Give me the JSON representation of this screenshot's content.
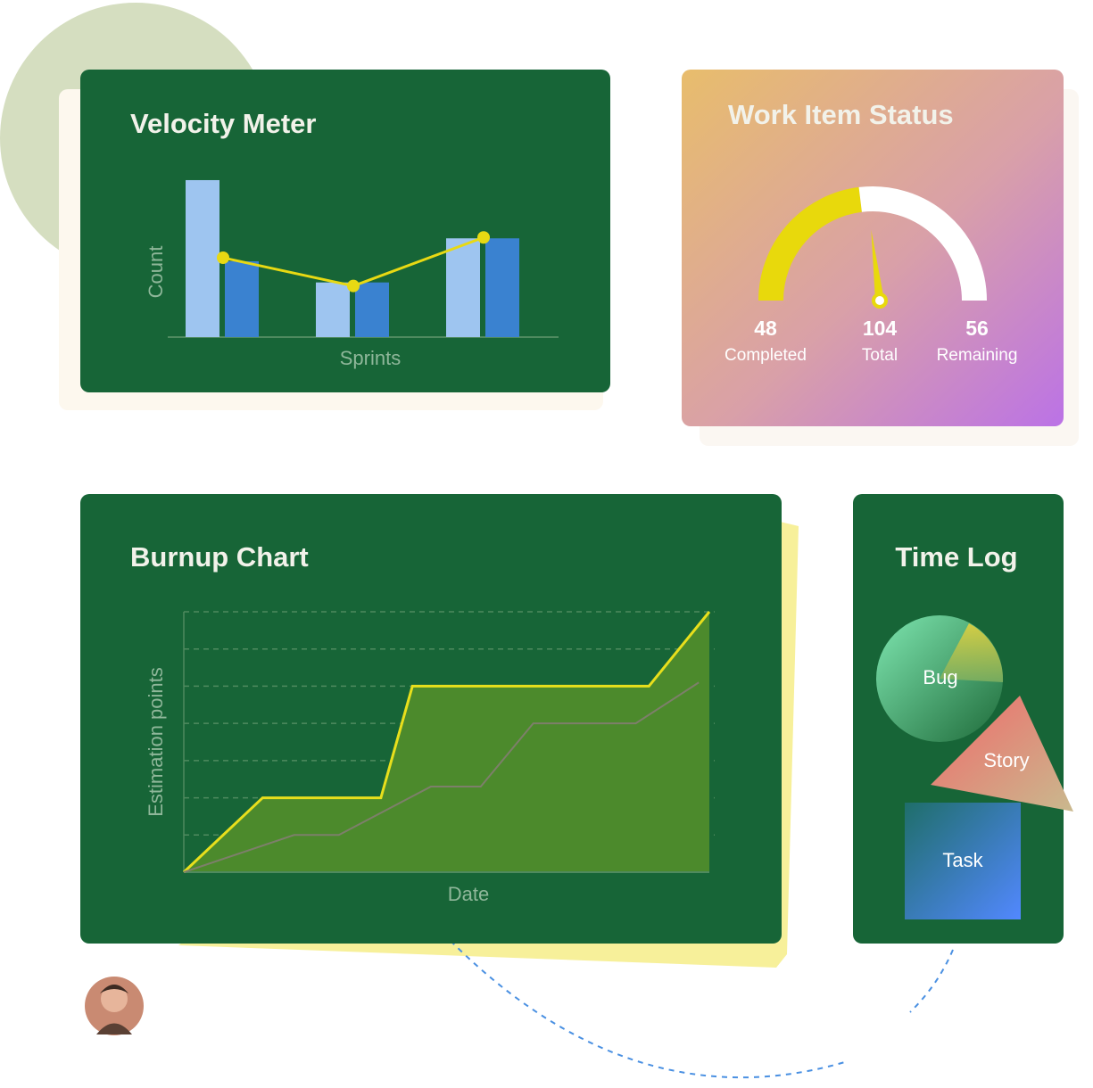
{
  "chart_data": [
    {
      "type": "bar",
      "title": "Velocity Meter",
      "x_label": "Sprints",
      "y_label": "Count",
      "categories": [
        null,
        null,
        null
      ],
      "ylim": [
        0,
        180
      ],
      "series": [
        {
          "color": "#9ec5f0",
          "values": [
            178,
            62,
            112
          ]
        },
        {
          "color": "#3a82d0",
          "values": [
            86,
            62,
            112
          ]
        }
      ],
      "line": {
        "color": "#e8d913",
        "values": [
          90,
          58,
          113
        ]
      }
    },
    {
      "type": "gauge",
      "title": "Work Item Status",
      "categories": [
        "Completed",
        "Total",
        "Remaining"
      ],
      "values": [
        48,
        104,
        56
      ],
      "colors": [
        "#e8d90c",
        "#ffffff"
      ]
    },
    {
      "type": "line",
      "title": "Burnup Chart",
      "x_label": "Date",
      "y_label": "Estimation points",
      "xlim": [
        0,
        20
      ],
      "ylim": [
        0,
        7
      ],
      "yticks": [
        1,
        2,
        3,
        4,
        5,
        6,
        7
      ],
      "grid": true,
      "series": [
        {
          "color": "#e8df1c",
          "area": "#4c8a2c",
          "x": [
            0,
            3,
            7.5,
            8.7,
            17.7,
            20
          ],
          "values": [
            0,
            2,
            2,
            5,
            5,
            7
          ]
        },
        {
          "color": "#7d7f6a",
          "x": [
            0,
            4.2,
            5.9,
            9.4,
            11.3,
            13.3,
            17.2,
            19.6
          ],
          "values": [
            0,
            1,
            1,
            2.3,
            2.3,
            4,
            4,
            5.1
          ]
        }
      ]
    }
  ],
  "time_log": {
    "title": "Time Log",
    "items": [
      "Bug",
      "Story",
      "Task"
    ]
  }
}
